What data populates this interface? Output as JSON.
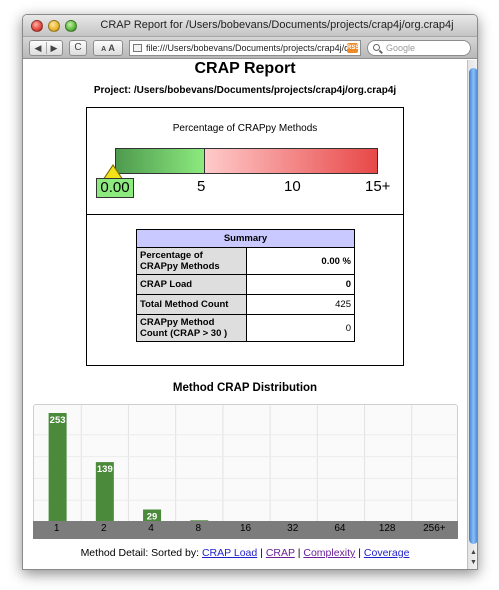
{
  "window": {
    "title": "CRAP Report for /Users/bobevans/Documents/projects/crap4j/org.crap4j"
  },
  "toolbar": {
    "back": "◀",
    "forward": "▶",
    "reload": "C",
    "text_small": "A",
    "text_large": "A",
    "url": "file:///Users/bobevans/Documents/projects/crap4j/org",
    "rss": "RSS",
    "search_placeholder": "Google"
  },
  "report": {
    "title": "CRAP Report",
    "project": "Project: /Users/bobevans/Documents/projects/crap4j/org.crap4j"
  },
  "gauge": {
    "title": "Percentage of CRAPpy Methods",
    "value": "0.00",
    "ticks": [
      "5",
      "10",
      "15+"
    ],
    "fill_percent": 0
  },
  "summary": {
    "header": "Summary",
    "rows": [
      {
        "label": "Percentage of CRAPpy Methods",
        "value": "0.00 %"
      },
      {
        "label": "CRAP Load",
        "value": "0"
      },
      {
        "label": "Total Method Count",
        "value": "425"
      },
      {
        "label": "CRAPpy Method Count (CRAP > 30 )",
        "value": "0"
      }
    ]
  },
  "distribution": {
    "title": "Method CRAP Distribution"
  },
  "chart_data": {
    "type": "bar",
    "title": "Method CRAP Distribution",
    "categories": [
      "1",
      "2",
      "4",
      "8",
      "16",
      "32",
      "64",
      "128",
      "256+"
    ],
    "values": [
      253,
      139,
      29,
      4,
      0,
      0,
      0,
      0,
      0
    ],
    "ylim": [
      0,
      253
    ],
    "grid": true,
    "colors": {
      "bar": "#4a8a3a",
      "axis": "#7c7c7c",
      "grid": "#e2e2e2"
    }
  },
  "footer": {
    "prefix": "Method Detail: Sorted by:",
    "sep": "|",
    "links": [
      "CRAP Load",
      "CRAP",
      "Complexity",
      "Coverage"
    ]
  }
}
